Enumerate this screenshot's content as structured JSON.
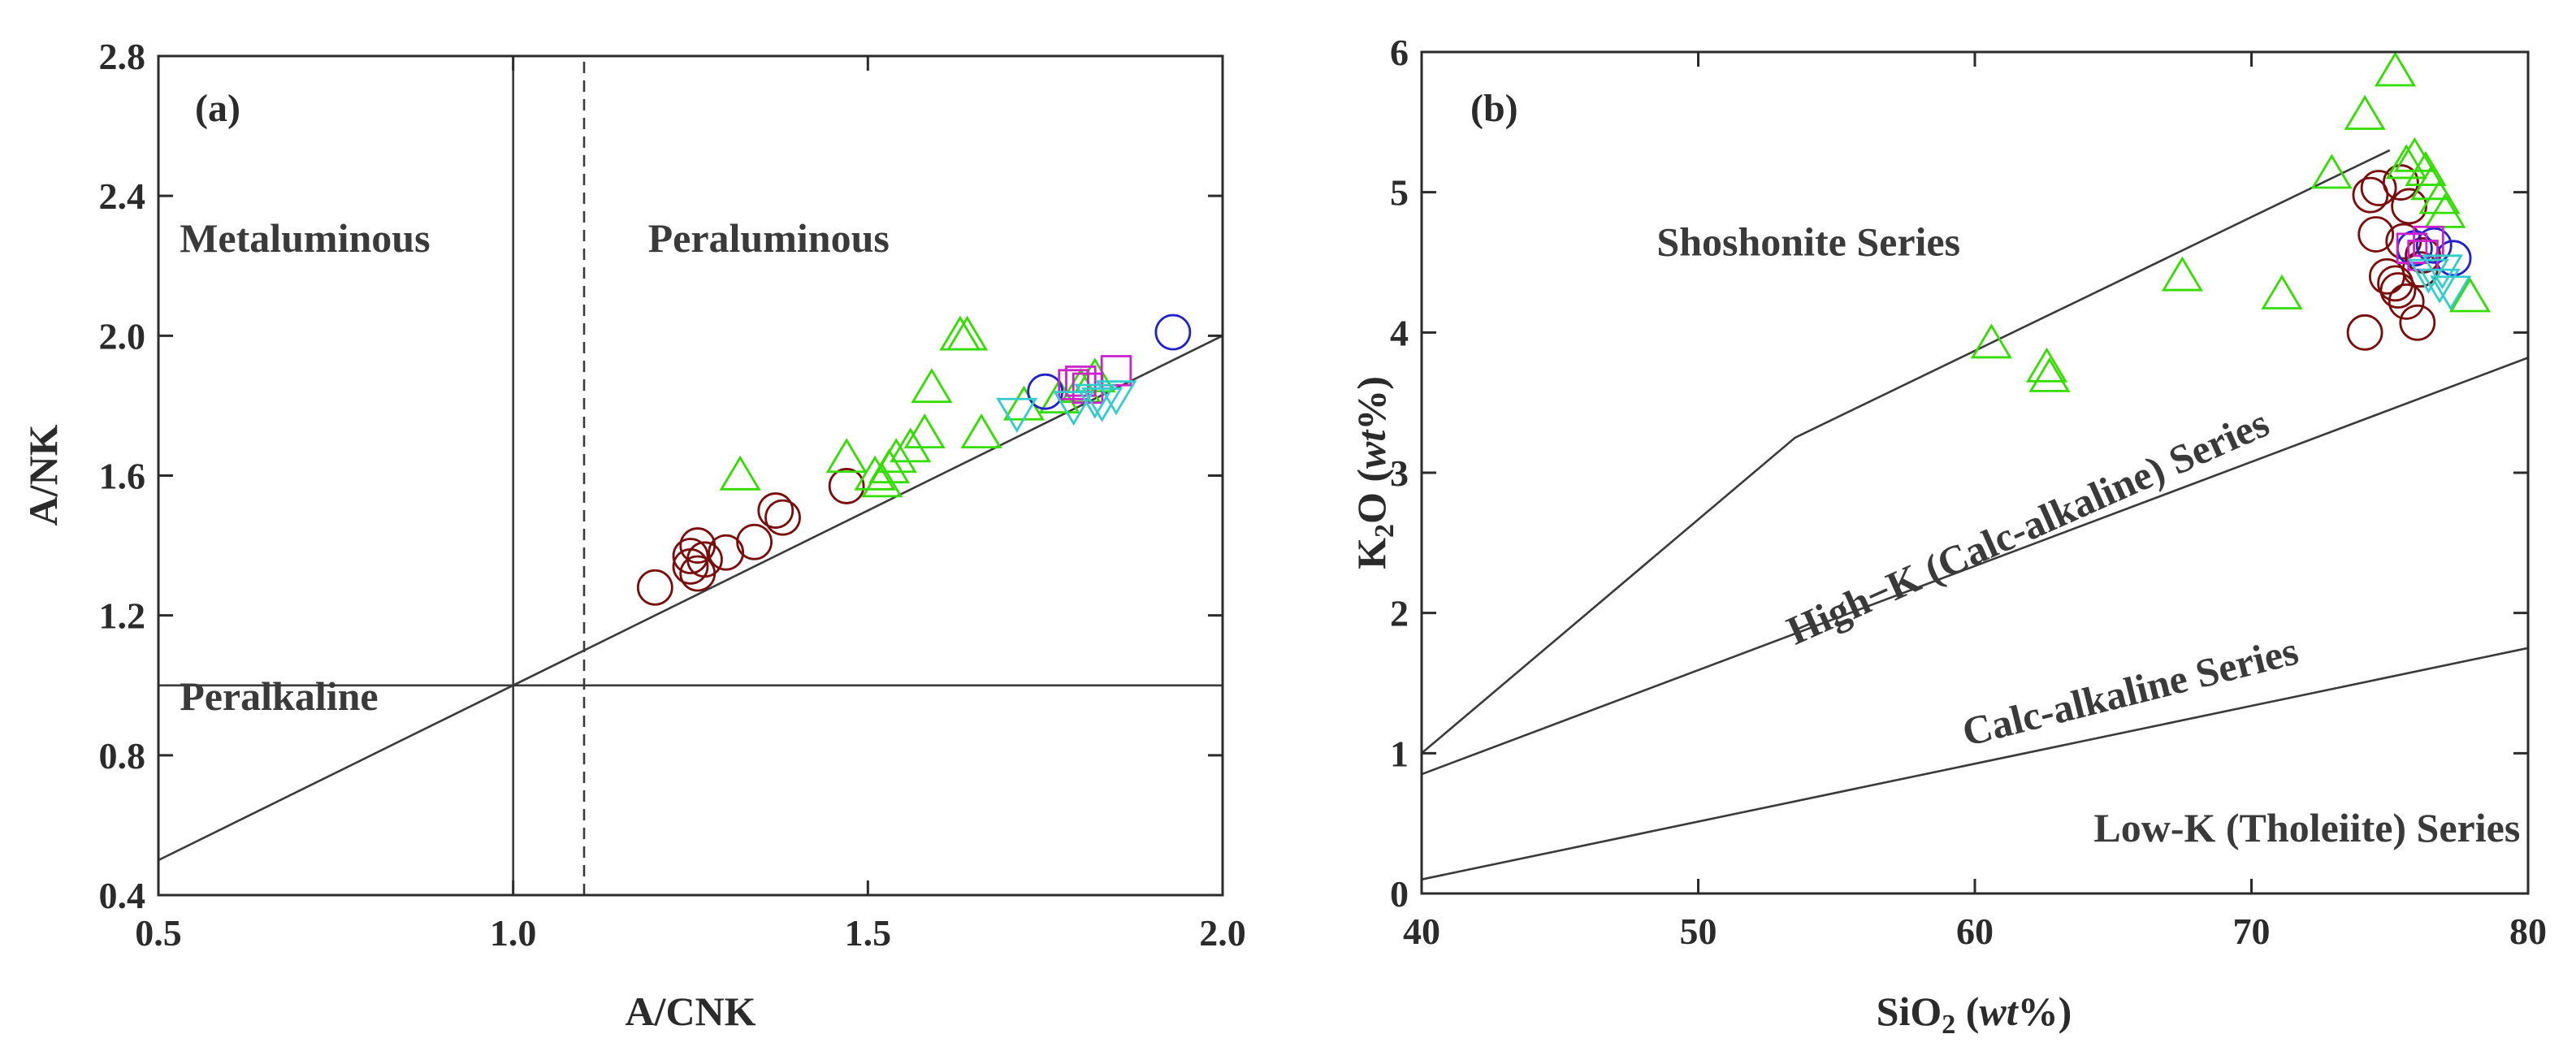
{
  "chart_data": [
    {
      "panel": "(a)",
      "type": "scatter",
      "title": "",
      "xlabel": "A/CNK",
      "ylabel": "A/NK",
      "xlim": [
        0.5,
        2.0
      ],
      "ylim": [
        0.4,
        2.8
      ],
      "xticks": [
        0.5,
        1.0,
        1.5,
        2.0
      ],
      "xtick_labels": [
        "0.5",
        "1.0",
        "1.5",
        "2.0"
      ],
      "yticks": [
        0.4,
        0.8,
        1.2,
        1.6,
        2.0,
        2.4,
        2.8
      ],
      "ytick_labels": [
        "0.4",
        "0.8",
        "1.2",
        "1.6",
        "2.0",
        "2.4",
        "2.8"
      ],
      "regions": [
        {
          "label": "Metaluminous",
          "x": 0.53,
          "y": 2.24
        },
        {
          "label": "Peraluminous",
          "x": 1.19,
          "y": 2.24
        },
        {
          "label": "Peralkaline",
          "x": 0.53,
          "y": 0.93
        }
      ],
      "ref_lines": [
        {
          "style": "solid",
          "points": [
            [
              1.0,
              0.4
            ],
            [
              1.0,
              2.8
            ]
          ]
        },
        {
          "style": "dashed",
          "points": [
            [
              1.1,
              0.4
            ],
            [
              1.1,
              2.8
            ]
          ]
        },
        {
          "style": "solid",
          "points": [
            [
              0.5,
              1.0
            ],
            [
              2.0,
              1.0
            ]
          ]
        },
        {
          "style": "solid",
          "points": [
            [
              0.5,
              0.5
            ],
            [
              2.0,
              2.0
            ]
          ]
        }
      ],
      "series": [
        {
          "name": "dark-red circles",
          "marker": "circle",
          "color": "#7a0c0c",
          "points": [
            [
              1.2,
              1.28
            ],
            [
              1.25,
              1.34
            ],
            [
              1.26,
              1.4
            ],
            [
              1.27,
              1.36
            ],
            [
              1.26,
              1.32
            ],
            [
              1.25,
              1.37
            ],
            [
              1.3,
              1.38
            ],
            [
              1.34,
              1.41
            ],
            [
              1.37,
              1.5
            ],
            [
              1.38,
              1.48
            ],
            [
              1.47,
              1.57
            ]
          ]
        },
        {
          "name": "green triangles",
          "marker": "triangle-up",
          "color": "#33dd00",
          "points": [
            [
              1.32,
              1.6
            ],
            [
              1.47,
              1.65
            ],
            [
              1.51,
              1.6
            ],
            [
              1.52,
              1.58
            ],
            [
              1.53,
              1.62
            ],
            [
              1.54,
              1.65
            ],
            [
              1.56,
              1.68
            ],
            [
              1.58,
              1.72
            ],
            [
              1.59,
              1.85
            ],
            [
              1.63,
              2.0
            ],
            [
              1.64,
              2.0
            ],
            [
              1.66,
              1.72
            ],
            [
              1.72,
              1.8
            ],
            [
              1.77,
              1.82
            ],
            [
              1.8,
              1.85
            ],
            [
              1.82,
              1.88
            ]
          ]
        },
        {
          "name": "blue circles",
          "marker": "circle",
          "color": "#2222cc",
          "points": [
            [
              1.75,
              1.84
            ],
            [
              1.93,
              2.01
            ]
          ]
        },
        {
          "name": "magenta squares",
          "marker": "square",
          "color": "#cc22cc",
          "points": [
            [
              1.79,
              1.86
            ],
            [
              1.8,
              1.87
            ],
            [
              1.81,
              1.85
            ],
            [
              1.85,
              1.9
            ]
          ]
        },
        {
          "name": "cyan triangles down",
          "marker": "triangle-down",
          "color": "#33cccc",
          "points": [
            [
              1.71,
              1.78
            ],
            [
              1.79,
              1.8
            ],
            [
              1.82,
              1.82
            ],
            [
              1.83,
              1.81
            ],
            [
              1.85,
              1.83
            ]
          ]
        }
      ]
    },
    {
      "panel": "(b)",
      "type": "scatter",
      "title": "",
      "xlabel": "SiO₂ (wt%)",
      "ylabel": "K₂O (wt%)",
      "xlim": [
        40,
        80
      ],
      "ylim": [
        0,
        6
      ],
      "xticks": [
        40,
        50,
        60,
        70,
        80
      ],
      "xtick_labels": [
        "40",
        "50",
        "60",
        "70",
        "80"
      ],
      "yticks": [
        0,
        1,
        2,
        3,
        4,
        5,
        6
      ],
      "ytick_labels": [
        "0",
        "1",
        "2",
        "3",
        "4",
        "5",
        "6"
      ],
      "regions": [
        {
          "label": "Shoshonite Series",
          "x": 48.5,
          "y": 4.55,
          "angle": 0
        },
        {
          "label": "High−K (Calc-alkaline) Series",
          "x": 53.5,
          "y": 1.77,
          "angle": -24
        },
        {
          "label": "Calc-alkaline Series",
          "x": 59.7,
          "y": 1.05,
          "angle": -14
        },
        {
          "label": "Low-K (Tholeiite) Series",
          "x": 64.3,
          "y": 0.37,
          "angle": 0
        }
      ],
      "ref_lines": [
        {
          "style": "solid",
          "points": [
            [
              40,
              1.0
            ],
            [
              53.5,
              3.25
            ],
            [
              75,
              5.3
            ]
          ]
        },
        {
          "style": "solid",
          "points": [
            [
              40,
              0.85
            ],
            [
              80,
              3.82
            ]
          ]
        },
        {
          "style": "solid",
          "points": [
            [
              40,
              0.1
            ],
            [
              80,
              1.75
            ]
          ]
        }
      ],
      "series": [
        {
          "name": "dark-red circles",
          "marker": "circle",
          "color": "#7a0c0c",
          "points": [
            [
              74.1,
              4.0
            ],
            [
              74.3,
              4.98
            ],
            [
              74.6,
              5.03
            ],
            [
              74.5,
              4.7
            ],
            [
              74.9,
              4.4
            ],
            [
              75.2,
              4.35
            ],
            [
              75.3,
              4.3
            ],
            [
              75.6,
              4.22
            ],
            [
              75.4,
              5.07
            ],
            [
              75.7,
              4.9
            ],
            [
              76.1,
              4.45
            ],
            [
              76.0,
              4.07
            ],
            [
              75.5,
              4.65
            ],
            [
              76.2,
              4.55
            ]
          ]
        },
        {
          "name": "green triangles",
          "marker": "triangle-up",
          "color": "#33dd00",
          "points": [
            [
              60.6,
              3.92
            ],
            [
              62.6,
              3.75
            ],
            [
              62.7,
              3.68
            ],
            [
              67.5,
              4.4
            ],
            [
              71.1,
              4.27
            ],
            [
              72.9,
              5.13
            ],
            [
              74.1,
              5.55
            ],
            [
              75.2,
              5.86
            ],
            [
              75.6,
              5.2
            ],
            [
              75.9,
              5.25
            ],
            [
              76.3,
              5.15
            ],
            [
              76.5,
              5.05
            ],
            [
              76.8,
              4.95
            ],
            [
              77.0,
              4.85
            ],
            [
              77.9,
              4.25
            ]
          ]
        },
        {
          "name": "blue circles",
          "marker": "circle",
          "color": "#2222cc",
          "points": [
            [
              75.9,
              4.6
            ],
            [
              76.6,
              4.62
            ],
            [
              77.3,
              4.53
            ]
          ]
        },
        {
          "name": "magenta squares",
          "marker": "square",
          "color": "#cc22cc",
          "points": [
            [
              75.8,
              4.6
            ],
            [
              76.2,
              4.55
            ],
            [
              76.4,
              4.65
            ]
          ]
        },
        {
          "name": "cyan triangles down",
          "marker": "triangle-down",
          "color": "#33cccc",
          "points": [
            [
              76.4,
              4.42
            ],
            [
              76.8,
              4.35
            ],
            [
              77.2,
              4.3
            ],
            [
              76.9,
              4.45
            ]
          ]
        }
      ]
    }
  ]
}
